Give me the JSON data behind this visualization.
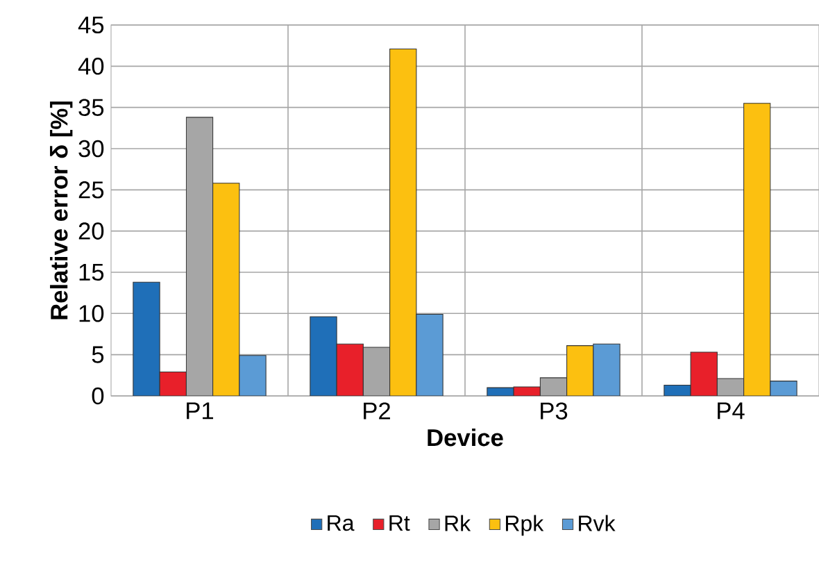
{
  "chart_data": {
    "type": "bar",
    "xlabel": "Device",
    "ylabel": "Relative error δ [%]",
    "categories": [
      "P1",
      "P2",
      "P3",
      "P4"
    ],
    "series": [
      {
        "name": "Ra",
        "color": "#1f6fb8",
        "values": [
          13.8,
          9.6,
          1.0,
          1.3
        ]
      },
      {
        "name": "Rt",
        "color": "#e8202a",
        "values": [
          2.9,
          6.3,
          1.1,
          5.3
        ]
      },
      {
        "name": "Rk",
        "color": "#a6a6a6",
        "values": [
          33.8,
          5.9,
          2.2,
          2.1
        ]
      },
      {
        "name": "Rpk",
        "color": "#fcc010",
        "values": [
          25.8,
          42.1,
          6.1,
          35.5
        ]
      },
      {
        "name": "Rvk",
        "color": "#5b9bd5",
        "values": [
          4.9,
          9.9,
          6.3,
          1.8
        ]
      }
    ],
    "ylim": [
      0,
      45
    ],
    "yticks": [
      0,
      5,
      10,
      15,
      20,
      25,
      30,
      35,
      40,
      45
    ],
    "grid": true,
    "legend": "bottom"
  }
}
